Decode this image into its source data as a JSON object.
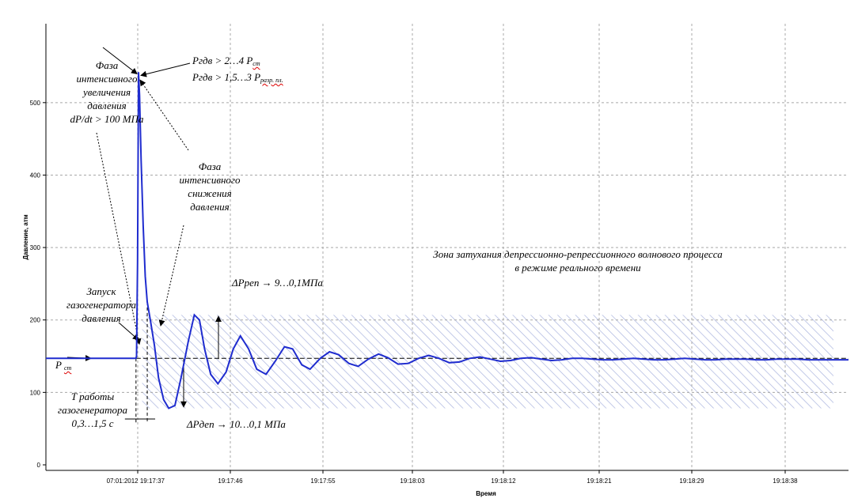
{
  "chart_data": {
    "type": "line",
    "xlabel": "Время",
    "ylabel": "Давление, атм",
    "ylim": [
      0,
      550
    ],
    "yticks": [
      0,
      100,
      200,
      300,
      400,
      500
    ],
    "xticks": [
      "07:01:2012 19:17:37",
      "19:17:46",
      "19:17:55",
      "19:18:03",
      "19:18:12",
      "19:18:21",
      "19:18:29",
      "19:18:38"
    ],
    "grid": true,
    "series": [
      {
        "color": "#1f2ccf",
        "x": [
          0,
          8.8,
          8.85,
          8.95,
          9.05,
          9.15,
          9.3,
          9.5,
          9.7,
          9.9,
          10.2,
          10.6,
          11.0,
          11.5,
          12.0,
          12.6,
          13.2,
          13.9,
          14.5,
          15.0,
          15.5,
          16.1,
          16.8,
          17.6,
          18.3,
          19.0,
          19.8,
          20.6,
          21.5,
          22.4,
          23.3,
          24.1,
          25.0,
          25.8,
          26.8,
          27.7,
          28.6,
          29.6,
          30.5,
          31.5,
          32.5,
          33.4,
          34.4,
          35.4,
          36.4,
          37.4,
          38.4,
          39.4,
          40.4,
          41.4,
          42.4,
          43.4,
          44.4,
          45.4,
          46.4,
          47.4,
          48.4,
          49.4,
          50.4,
          51.4,
          52.4,
          53.4,
          54.4,
          55.4,
          56.4,
          57.4,
          58.4,
          59.4,
          60.4,
          61.4,
          62.4,
          63.4,
          64.4,
          65.4,
          66.4,
          67.4,
          68.4,
          69.4,
          70.4,
          71.4,
          72.4,
          73.4,
          74.4,
          75.4,
          76.4,
          77.4,
          78.4
        ],
        "y": [
          147,
          147,
          150,
          280,
          542,
          510,
          420,
          330,
          260,
          225,
          200,
          165,
          120,
          90,
          78,
          82,
          120,
          170,
          207,
          200,
          160,
          125,
          112,
          128,
          160,
          178,
          160,
          132,
          125,
          143,
          163,
          160,
          138,
          132,
          147,
          156,
          152,
          140,
          136,
          146,
          153,
          148,
          139,
          140,
          147,
          151,
          147,
          141,
          142,
          147,
          149,
          146,
          143,
          144,
          147,
          148,
          146,
          144,
          145,
          147,
          147,
          146,
          145,
          145,
          146,
          147,
          146,
          145,
          145,
          146,
          147,
          146,
          145,
          145,
          146,
          146,
          146,
          145,
          145,
          146,
          146,
          146,
          145,
          145,
          145,
          145,
          145
        ]
      }
    ],
    "static_level": 147,
    "shaded_band": [
      78,
      207
    ],
    "xlim": [
      0,
      78.4
    ]
  },
  "annotations": {
    "phase_rise": [
      "Фаза",
      "интенсивного",
      "увеличения",
      "давления",
      "dP/dt > 100 МПа"
    ],
    "p_gdv_1": "Pгдв > 2…4  P",
    "p_gdv_1_sub": "ст",
    "p_gdv_2": "Pгдв > 1,5…3 P",
    "p_gdv_2_sub": "разр. пл.",
    "phase_fall": [
      "Фаза",
      "интенсивного",
      "снижения",
      "давления"
    ],
    "zone": [
      "Зона затухания депрессионно-репрессионного волнового процесса",
      "в режиме реального времени"
    ],
    "launch": [
      "Запуск",
      "газогенератора",
      "давления"
    ],
    "p_rep": "ΔPреп → 9…0,1МПа",
    "p_st": "P",
    "p_st_sub": "ст",
    "t_work": [
      "T работы",
      "газогенератора",
      "0,3…1,5 с"
    ],
    "p_dep": "ΔPдеп → 10…0,1 МПа"
  }
}
